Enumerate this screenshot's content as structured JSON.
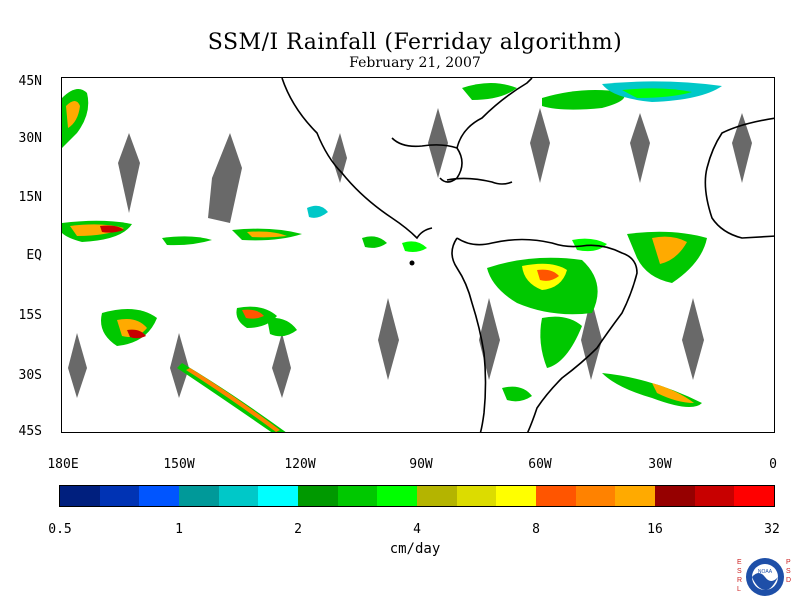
{
  "header": {
    "title": "SSM/I Rainfall (Ferriday algorithm)",
    "date": "February 21, 2007"
  },
  "axes": {
    "lat_labels": [
      "45N",
      "30N",
      "15N",
      "EQ",
      "15S",
      "30S",
      "45S"
    ],
    "lon_labels": [
      "180E",
      "150W",
      "120W",
      "90W",
      "60W",
      "30W",
      "0"
    ]
  },
  "colorbar": {
    "colors": [
      "#001f7e",
      "#0033b4",
      "#0055ff",
      "#009999",
      "#00c8c8",
      "#00ffff",
      "#009900",
      "#00c800",
      "#00ff00",
      "#b4b400",
      "#dcdc00",
      "#ffff00",
      "#ff5500",
      "#ff8200",
      "#ffaa00",
      "#960000",
      "#c80000",
      "#ff0000"
    ],
    "labels": [
      "0.5",
      "1",
      "2",
      "4",
      "8",
      "16",
      "32"
    ],
    "units": "cm/day"
  },
  "colors": {
    "land_outline": "#000000",
    "missing_data": "#696969",
    "background": "#ffffff"
  },
  "logo": {
    "left_text": "ESRL",
    "center_text": "NOAA",
    "right_text": "PSD"
  }
}
